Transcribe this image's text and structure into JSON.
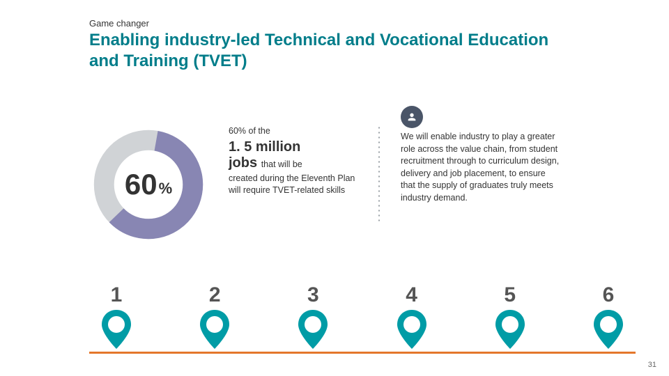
{
  "header": {
    "eyebrow": "Game changer",
    "title": "Enabling industry-led Technical and Vocational Education and Training (TVET)"
  },
  "donut": {
    "value": 60,
    "display_number": "60",
    "display_unit": "%",
    "ring_width": 17,
    "fg_color": "#8886b3",
    "bg_color": "#d0d3d6",
    "start_angle_deg": 10
  },
  "mid": {
    "lead": "60% of the",
    "big_line1": "1. 5 million",
    "big_line2_prefix": "jobs",
    "big_line2_rest": "that will be",
    "rest": "created during the Eleventh Plan will require TVET-related skills"
  },
  "right": {
    "icon_bg": "#4a5568",
    "icon_fg": "#ffffff",
    "text": "We will enable industry to play a greater role across the value chain, from student recruitment through to curriculum design, delivery and job placement, to ensure that the supply of graduates truly meets industry demand."
  },
  "timeline": {
    "baseline_color": "#e4772b",
    "pin_ring_color": "#009ca6",
    "pin_fill_color": "#ffffff",
    "pin_number_color": "#555555",
    "connector_color": "#9aa0a6",
    "pins": [
      {
        "n": "1"
      },
      {
        "n": "2"
      },
      {
        "n": "3"
      },
      {
        "n": "4"
      },
      {
        "n": "5"
      },
      {
        "n": "6"
      }
    ]
  },
  "page_number": "31",
  "colors": {
    "title": "#007d8a",
    "text": "#333333",
    "vdots": "#9aa0a6"
  }
}
